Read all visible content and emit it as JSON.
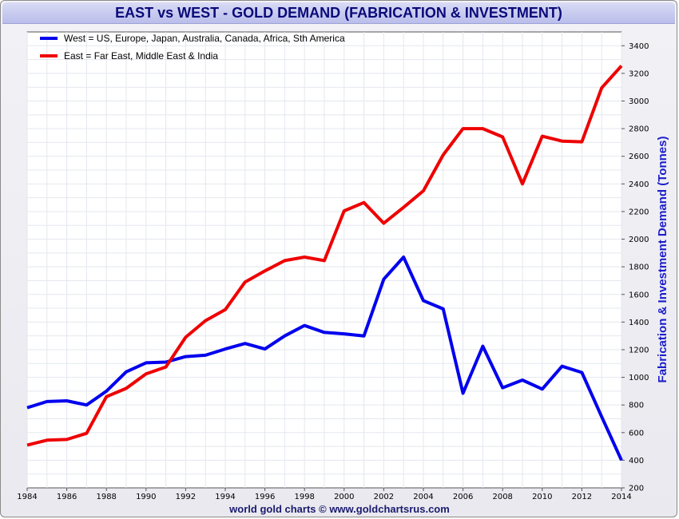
{
  "chart_data": {
    "type": "line",
    "title": "EAST vs WEST - GOLD DEMAND (FABRICATION & INVESTMENT)",
    "ylabel": "Fabrication & Investment Demand (Tonnes)",
    "xlabel": "",
    "credit": "world gold charts © www.goldchartsrus.com",
    "x": [
      1984,
      1985,
      1986,
      1987,
      1988,
      1989,
      1990,
      1991,
      1992,
      1993,
      1994,
      1995,
      1996,
      1997,
      1998,
      1999,
      2000,
      2001,
      2002,
      2003,
      2004,
      2005,
      2006,
      2007,
      2008,
      2009,
      2010,
      2011,
      2012,
      2013,
      2014
    ],
    "xlim": [
      1984,
      2014
    ],
    "ylim": [
      200,
      3500
    ],
    "x_ticks": [
      "1984",
      "1986",
      "1988",
      "1990",
      "1992",
      "1994",
      "1996",
      "1998",
      "2000",
      "2002",
      "2004",
      "2006",
      "2008",
      "2010",
      "2012",
      "2014"
    ],
    "y_ticks": [
      "200",
      "400",
      "600",
      "800",
      "1000",
      "1200",
      "1400",
      "1600",
      "1800",
      "2000",
      "2200",
      "2400",
      "2600",
      "2800",
      "3000",
      "3200",
      "3400"
    ],
    "grid": true,
    "legend_position": "top-left",
    "series": [
      {
        "name": "West = US, Europe, Japan, Australia, Canada, Africa, Sth America",
        "color": "#0000ee",
        "values": [
          780,
          825,
          830,
          800,
          900,
          1040,
          1105,
          1110,
          1150,
          1160,
          1205,
          1245,
          1205,
          1300,
          1375,
          1325,
          1315,
          1300,
          1710,
          1870,
          1555,
          1495,
          885,
          1225,
          925,
          980,
          915,
          1080,
          1035,
          715,
          400
        ]
      },
      {
        "name": "East = Far East, Middle East & India",
        "color": "#ee0000",
        "values": [
          510,
          545,
          550,
          595,
          860,
          920,
          1025,
          1075,
          1290,
          1410,
          1490,
          1690,
          1770,
          1845,
          1870,
          1845,
          2205,
          2265,
          2115,
          2230,
          2350,
          2610,
          2800,
          2800,
          2740,
          2400,
          2745,
          2710,
          2705,
          3095,
          3255
        ]
      }
    ]
  }
}
